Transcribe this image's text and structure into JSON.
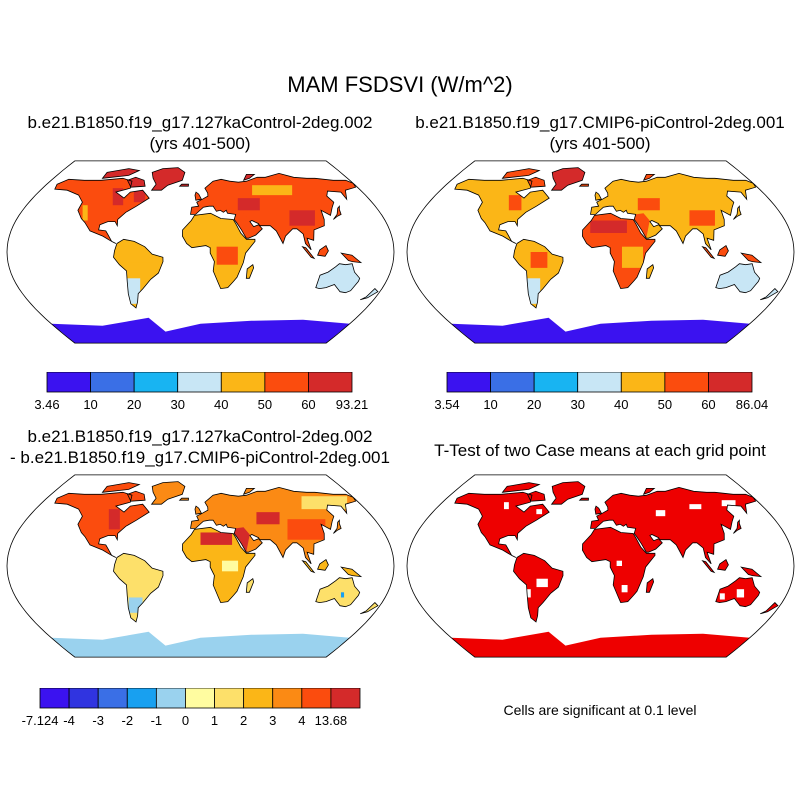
{
  "title": "MAM FSDSVI (W/m^2)",
  "panels": [
    {
      "title_line1": "b.e21.B1850.f19_g17.127kaControl-2deg.002",
      "title_line2": "(yrs 401-500)",
      "colorbar": {
        "colors": [
          "#3b12f0",
          "#3a6fe6",
          "#18b4f2",
          "#c8e6f5",
          "#fbb617",
          "#fb4c0e",
          "#d42a2a"
        ],
        "labels": [
          "3.46",
          "10",
          "20",
          "30",
          "40",
          "50",
          "60",
          "93.21"
        ]
      }
    },
    {
      "title_line1": "b.e21.B1850.f19_g17.CMIP6-piControl-2deg.001",
      "title_line2": "(yrs 401-500)",
      "colorbar": {
        "colors": [
          "#3b12f0",
          "#3a6fe6",
          "#18b4f2",
          "#c8e6f5",
          "#fbb617",
          "#fb4c0e",
          "#d42a2a"
        ],
        "labels": [
          "3.54",
          "10",
          "20",
          "30",
          "40",
          "50",
          "60",
          "86.04"
        ]
      }
    },
    {
      "title_line1": "b.e21.B1850.f19_g17.127kaControl-2deg.002",
      "title_line2": "- b.e21.B1850.f19_g17.CMIP6-piControl-2deg.001",
      "colorbar": {
        "colors": [
          "#3b12f0",
          "#3034e0",
          "#3a6fe6",
          "#18a0f0",
          "#9ad2ee",
          "#fffca0",
          "#fde06a",
          "#fbb617",
          "#fb8a14",
          "#fb4c0e",
          "#d42a2a"
        ],
        "labels": [
          "-7.124",
          "-4",
          "-3",
          "-2",
          "-1",
          "0",
          "1",
          "2",
          "3",
          "4",
          "13.68"
        ]
      }
    },
    {
      "title_line1": "T-Test of two Case means at each grid point",
      "note": "Cells are significant at 0.1 level",
      "fill": "#ee0000"
    }
  ]
}
